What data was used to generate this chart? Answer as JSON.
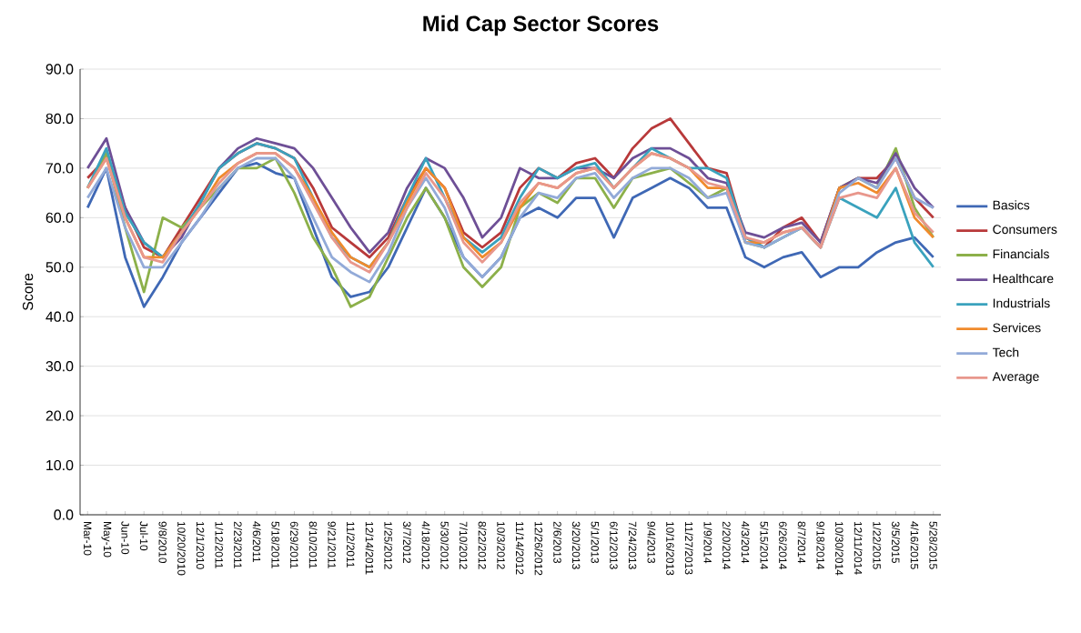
{
  "chart_data": {
    "type": "line",
    "title": "Mid Cap Sector Scores",
    "ylabel": "Score",
    "categories": [
      "Mar-10",
      "May-10",
      "Jun-10",
      "Jul-10",
      "9/8/2010",
      "10/20/2010",
      "12/1/2010",
      "1/12/2011",
      "2/23/2011",
      "4/6/2011",
      "5/18/2011",
      "6/29/2011",
      "8/10/2011",
      "9/21/2011",
      "11/2/2011",
      "12/14/2011",
      "1/25/2012",
      "3/7/2012",
      "4/18/2012",
      "5/30/2012",
      "7/10/2012",
      "8/22/2012",
      "10/3/2012",
      "11/14/2012",
      "12/26/2012",
      "2/6/2013",
      "3/20/2013",
      "5/1/2013",
      "6/12/2013",
      "7/24/2013",
      "9/4/2013",
      "10/16/2013",
      "11/27/2013",
      "1/9/2014",
      "2/20/2014",
      "4/3/2014",
      "5/15/2014",
      "6/26/2014",
      "8/7/2014",
      "9/18/2014",
      "10/30/2014",
      "12/11/2014",
      "1/22/2015",
      "3/5/2015",
      "4/16/2015",
      "5/28/2015"
    ],
    "series": [
      {
        "name": "Basics",
        "color": "#3f68b5",
        "values": [
          62,
          70,
          52,
          42,
          48,
          55,
          60,
          65,
          70,
          71,
          69,
          68,
          58,
          48,
          44,
          45,
          50,
          58,
          66,
          60,
          52,
          48,
          52,
          60,
          62,
          60,
          64,
          64,
          56,
          64,
          66,
          68,
          66,
          62,
          62,
          52,
          50,
          52,
          53,
          48,
          50,
          50,
          53,
          55,
          56,
          52
        ]
      },
      {
        "name": "Consumers",
        "color": "#b8393a",
        "values": [
          68,
          72,
          62,
          54,
          52,
          58,
          64,
          70,
          73,
          75,
          74,
          72,
          66,
          58,
          55,
          52,
          56,
          64,
          70,
          66,
          57,
          54,
          57,
          66,
          70,
          68,
          71,
          72,
          68,
          74,
          78,
          80,
          75,
          70,
          69,
          56,
          54,
          58,
          60,
          55,
          66,
          68,
          68,
          72,
          64,
          60
        ]
      },
      {
        "name": "Financials",
        "color": "#8cb04a",
        "values": [
          66,
          73,
          58,
          45,
          60,
          58,
          62,
          66,
          70,
          70,
          72,
          65,
          56,
          50,
          42,
          44,
          52,
          60,
          66,
          60,
          50,
          46,
          50,
          62,
          65,
          63,
          68,
          68,
          62,
          68,
          69,
          70,
          67,
          64,
          66,
          55,
          54,
          56,
          58,
          54,
          66,
          68,
          66,
          74,
          62,
          56
        ]
      },
      {
        "name": "Healthcare",
        "color": "#6e4f96",
        "values": [
          70,
          76,
          62,
          55,
          52,
          56,
          63,
          70,
          74,
          76,
          75,
          74,
          70,
          64,
          58,
          53,
          57,
          66,
          72,
          70,
          64,
          56,
          60,
          70,
          68,
          68,
          70,
          70,
          68,
          72,
          74,
          74,
          72,
          68,
          67,
          57,
          56,
          58,
          59,
          55,
          66,
          68,
          67,
          73,
          66,
          62
        ]
      },
      {
        "name": "Industrials",
        "color": "#3aa2bd",
        "values": [
          66,
          74,
          61,
          55,
          52,
          57,
          63,
          70,
          73,
          75,
          74,
          72,
          64,
          56,
          52,
          50,
          55,
          64,
          72,
          64,
          56,
          53,
          56,
          64,
          70,
          68,
          70,
          71,
          66,
          70,
          74,
          72,
          70,
          70,
          68,
          56,
          54,
          56,
          58,
          54,
          64,
          62,
          60,
          66,
          55,
          50
        ]
      },
      {
        "name": "Services",
        "color": "#f08a2c",
        "values": [
          66,
          72,
          60,
          52,
          52,
          57,
          62,
          68,
          71,
          73,
          73,
          70,
          64,
          57,
          52,
          50,
          55,
          63,
          70,
          66,
          56,
          52,
          55,
          62,
          67,
          66,
          69,
          70,
          66,
          70,
          73,
          72,
          70,
          66,
          66,
          55,
          55,
          57,
          58,
          54,
          66,
          67,
          65,
          70,
          60,
          56
        ]
      },
      {
        "name": "Tech",
        "color": "#92aad8",
        "values": [
          64,
          70,
          58,
          50,
          50,
          55,
          60,
          66,
          70,
          72,
          72,
          68,
          60,
          52,
          49,
          47,
          53,
          62,
          68,
          62,
          52,
          48,
          52,
          60,
          65,
          64,
          68,
          69,
          64,
          68,
          70,
          70,
          68,
          64,
          65,
          55,
          54,
          56,
          58,
          54,
          65,
          68,
          66,
          72,
          64,
          62
        ]
      },
      {
        "name": "Average",
        "color": "#e8978c",
        "values": [
          66,
          72,
          60,
          52,
          51,
          57,
          62,
          67,
          71,
          73,
          73,
          70,
          63,
          56,
          51,
          49,
          55,
          62,
          69,
          64,
          55,
          51,
          55,
          63,
          67,
          66,
          69,
          70,
          66,
          70,
          73,
          72,
          70,
          67,
          66,
          56,
          55,
          57,
          58,
          54,
          64,
          65,
          64,
          70,
          61,
          57
        ]
      }
    ],
    "ylim": [
      0,
      90
    ],
    "yticks": [
      {
        "value": 0,
        "label": "0.0"
      },
      {
        "value": 10,
        "label": "10.0"
      },
      {
        "value": 20,
        "label": "20.0"
      },
      {
        "value": 30,
        "label": "30.0"
      },
      {
        "value": 40,
        "label": "40.0"
      },
      {
        "value": 50,
        "label": "50.0"
      },
      {
        "value": 60,
        "label": "60.0"
      },
      {
        "value": 70,
        "label": "70.0"
      },
      {
        "value": 80,
        "label": "80.0"
      },
      {
        "value": 90,
        "label": "90.0"
      }
    ],
    "grid": "y",
    "legend": "right",
    "marker": "none",
    "line_style": "solid"
  }
}
